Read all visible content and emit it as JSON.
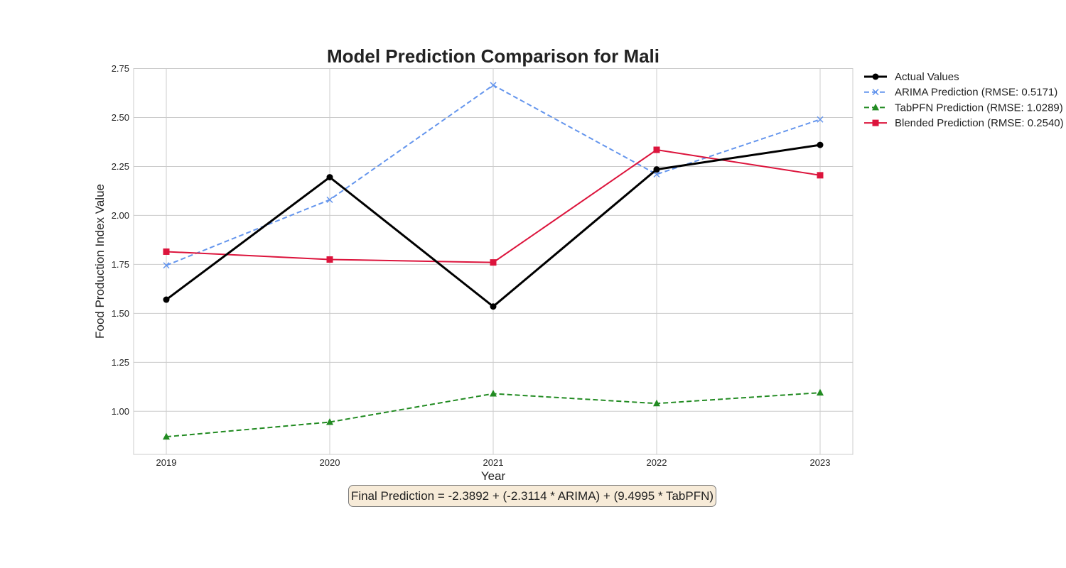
{
  "chart_data": {
    "type": "line",
    "title": "Model Prediction Comparison for Mali",
    "xlabel": "Year",
    "ylabel": "Food Production Index Value",
    "x": [
      2019,
      2020,
      2021,
      2022,
      2023
    ],
    "xlim": [
      2018.8,
      2023.2
    ],
    "ylim": [
      0.78,
      2.75
    ],
    "yticks": [
      1.0,
      1.25,
      1.5,
      1.75,
      2.0,
      2.25,
      2.5,
      2.75
    ],
    "grid": true,
    "legend_position": "outside right",
    "series": [
      {
        "name": "Actual Values",
        "values": [
          1.57,
          2.195,
          1.535,
          2.235,
          2.36
        ],
        "color": "#000000",
        "marker": "circle",
        "dash": false
      },
      {
        "name": "ARIMA Prediction (RMSE: 0.5171)",
        "values": [
          1.745,
          2.08,
          2.665,
          2.21,
          2.49
        ],
        "color": "#6495ed",
        "marker": "x",
        "dash": true
      },
      {
        "name": "TabPFN Prediction (RMSE: 1.0289)",
        "values": [
          0.87,
          0.945,
          1.09,
          1.04,
          1.095
        ],
        "color": "#228b22",
        "marker": "triangle",
        "dash": true
      },
      {
        "name": "Blended Prediction (RMSE: 0.2540)",
        "values": [
          1.815,
          1.775,
          1.76,
          2.335,
          2.205
        ],
        "color": "#dc143c",
        "marker": "square",
        "dash": false
      }
    ],
    "annotation": "Final Prediction = -2.3892 + (-2.3114 * ARIMA) + (9.4995 * TabPFN)"
  }
}
